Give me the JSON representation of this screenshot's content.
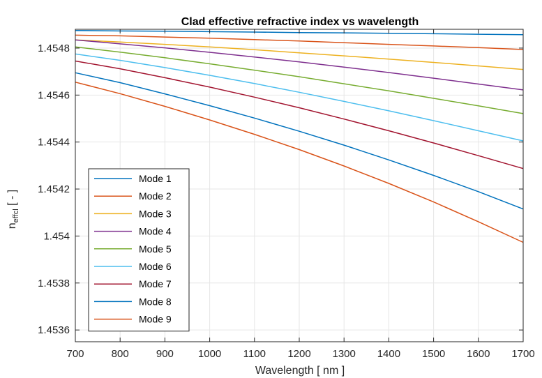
{
  "chart_data": {
    "type": "line",
    "title": "Clad effective refractive index vs wavelength",
    "xlabel": "Wavelength [ nm ]",
    "ylabel_main": "n",
    "ylabel_sub": "effcl",
    "ylabel_tail": " [ - ]",
    "xlim": [
      700,
      1700
    ],
    "ylim": [
      1.45355,
      1.45488
    ],
    "xticks": [
      "700",
      "800",
      "900",
      "1000",
      "1100",
      "1200",
      "1300",
      "1400",
      "1500",
      "1600",
      "1700"
    ],
    "yticks": [
      "1.4536",
      "1.4538",
      "1.454",
      "1.4542",
      "1.4544",
      "1.4546",
      "1.4548"
    ],
    "grid": true,
    "legend_position": "bottom-left",
    "x": [
      700,
      800,
      900,
      1000,
      1100,
      1200,
      1300,
      1400,
      1500,
      1600,
      1700
    ],
    "series": [
      {
        "name": "Mode 1",
        "color": "#0072BD",
        "values": [
          1.454875,
          1.454873,
          1.454872,
          1.45487,
          1.454868,
          1.454866,
          1.454865,
          1.454863,
          1.454861,
          1.454859,
          1.454857
        ]
      },
      {
        "name": "Mode 2",
        "color": "#D95319",
        "values": [
          1.454855,
          1.454852,
          1.454847,
          1.454842,
          1.454836,
          1.45483,
          1.454823,
          1.454816,
          1.454809,
          1.454802,
          1.454794
        ]
      },
      {
        "name": "Mode 3",
        "color": "#EDB120",
        "values": [
          1.454835,
          1.454826,
          1.454816,
          1.454805,
          1.454793,
          1.45478,
          1.454767,
          1.454753,
          1.454739,
          1.454724,
          1.454709
        ]
      },
      {
        "name": "Mode 4",
        "color": "#7E2F8E",
        "values": [
          1.454835,
          1.454818,
          1.454801,
          1.454782,
          1.454762,
          1.454741,
          1.454719,
          1.454696,
          1.454672,
          1.454647,
          1.454622
        ]
      },
      {
        "name": "Mode 5",
        "color": "#77AC30",
        "values": [
          1.454805,
          1.454783,
          1.454759,
          1.454733,
          1.454706,
          1.454678,
          1.454648,
          1.454618,
          1.454586,
          1.454554,
          1.454521
        ]
      },
      {
        "name": "Mode 6",
        "color": "#4DBEEE",
        "values": [
          1.454775,
          1.454748,
          1.454717,
          1.454684,
          1.454649,
          1.454612,
          1.454573,
          1.454533,
          1.454491,
          1.454448,
          1.454405
        ]
      },
      {
        "name": "Mode 7",
        "color": "#A2142F",
        "values": [
          1.454745,
          1.454712,
          1.454674,
          1.454634,
          1.454591,
          1.454546,
          1.454498,
          1.454448,
          1.454396,
          1.454342,
          1.454287
        ]
      },
      {
        "name": "Mode 8",
        "color": "#0072BD",
        "values": [
          1.454695,
          1.454653,
          1.454605,
          1.454555,
          1.454502,
          1.454446,
          1.454387,
          1.454324,
          1.454258,
          1.454189,
          1.454115
        ]
      },
      {
        "name": "Mode 9",
        "color": "#D95319",
        "values": [
          1.454655,
          1.454606,
          1.454552,
          1.454494,
          1.454433,
          1.454368,
          1.454298,
          1.454224,
          1.454145,
          1.454061,
          1.453973
        ]
      }
    ]
  }
}
